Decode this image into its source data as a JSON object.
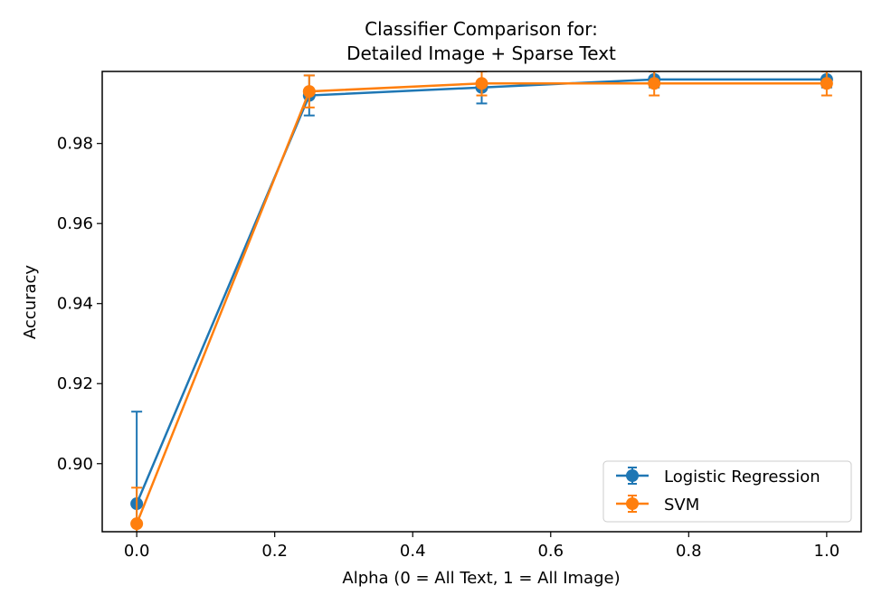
{
  "chart_data": {
    "type": "line",
    "title_line1": "Classifier Comparison for:",
    "title_line2": "Detailed Image + Sparse Text",
    "xlabel": "Alpha (0 = All Text, 1 = All Image)",
    "ylabel": "Accuracy",
    "xlim": [
      -0.05,
      1.05
    ],
    "ylim": [
      0.883,
      0.998
    ],
    "xticks": [
      0.0,
      0.2,
      0.4,
      0.6,
      0.8,
      1.0
    ],
    "xtick_labels": [
      "0.0",
      "0.2",
      "0.4",
      "0.6",
      "0.8",
      "1.0"
    ],
    "yticks": [
      0.9,
      0.92,
      0.94,
      0.96,
      0.98
    ],
    "ytick_labels": [
      "0.90",
      "0.92",
      "0.94",
      "0.96",
      "0.98"
    ],
    "grid": false,
    "legend_position": "lower-right",
    "x": [
      0.0,
      0.25,
      0.5,
      0.75,
      1.0
    ],
    "series": [
      {
        "name": "Logistic Regression",
        "color": "#1f77b4",
        "values": [
          0.89,
          0.992,
          0.994,
          0.996,
          0.996
        ],
        "errors": [
          0.023,
          0.005,
          0.004,
          0.002,
          0.002
        ]
      },
      {
        "name": "SVM",
        "color": "#ff7f0e",
        "values": [
          0.885,
          0.993,
          0.995,
          0.995,
          0.995
        ],
        "errors": [
          0.009,
          0.004,
          0.003,
          0.003,
          0.003
        ]
      }
    ]
  }
}
